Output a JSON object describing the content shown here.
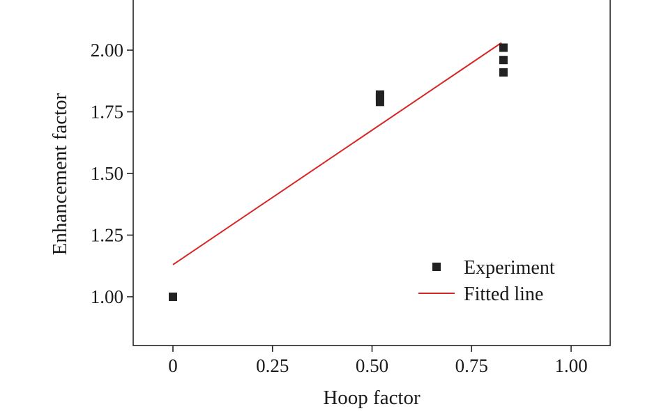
{
  "chart_data": {
    "type": "scatter",
    "xlabel": "Hoop factor",
    "ylabel": "Enhancement factor",
    "xlim": [
      -0.1,
      1.1
    ],
    "ylim": [
      0.8,
      2.2
    ],
    "x_ticks": [
      0,
      0.25,
      0.5,
      0.75,
      1.0
    ],
    "x_tick_labels": [
      "0",
      "0.25",
      "0.50",
      "0.75",
      "1.00"
    ],
    "y_ticks": [
      1.0,
      1.25,
      1.5,
      1.75,
      2.0
    ],
    "y_tick_labels": [
      "1.00",
      "1.25",
      "1.50",
      "1.75",
      "2.00"
    ],
    "grid": false,
    "legend_position": "bottom-right",
    "series": [
      {
        "name": "Experiment",
        "kind": "scatter",
        "marker": "square",
        "color": "#222222",
        "points": [
          {
            "x": 0,
            "y": 1.0
          },
          {
            "x": 0.52,
            "y": 1.82
          },
          {
            "x": 0.52,
            "y": 1.81
          },
          {
            "x": 0.52,
            "y": 1.79
          },
          {
            "x": 0.83,
            "y": 2.01
          },
          {
            "x": 0.83,
            "y": 1.96
          },
          {
            "x": 0.83,
            "y": 1.91
          }
        ]
      },
      {
        "name": "Fitted line",
        "kind": "line",
        "color": "#d62728",
        "points": [
          {
            "x": 0,
            "y": 1.13
          },
          {
            "x": 0.825,
            "y": 2.03
          }
        ]
      }
    ]
  }
}
